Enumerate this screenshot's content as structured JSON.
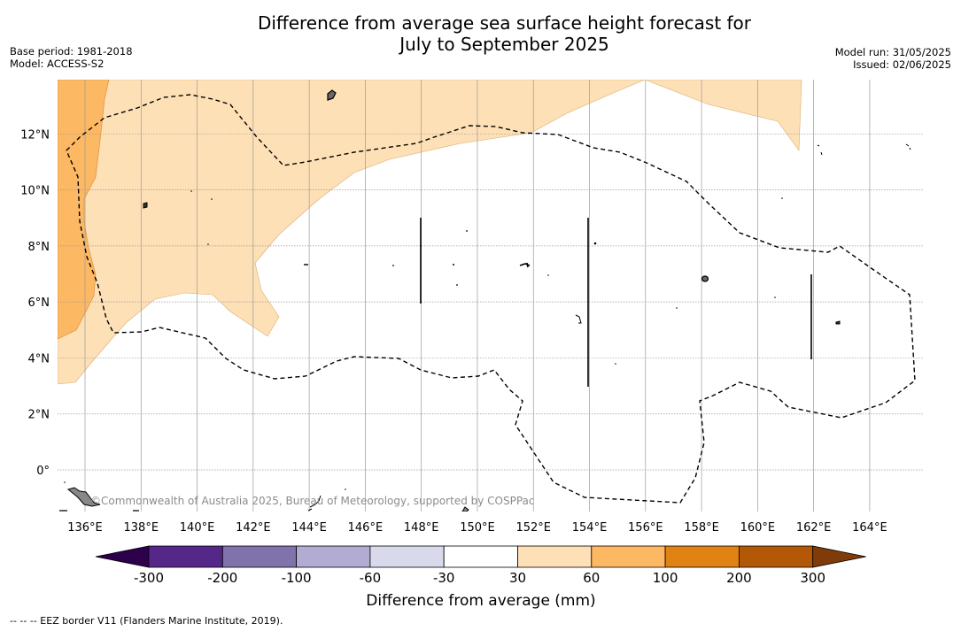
{
  "title": {
    "line1": "Difference from average sea surface height forecast for",
    "line2": "July to September 2025"
  },
  "meta_left": {
    "base_period": "Base period: 1981-2018",
    "model": "Model: ACCESS-S2"
  },
  "meta_right": {
    "model_run": "Model run: 31/05/2025",
    "issued": "Issued: 02/06/2025"
  },
  "map": {
    "lon_labels": [
      "136°E",
      "138°E",
      "140°E",
      "142°E",
      "144°E",
      "146°E",
      "148°E",
      "150°E",
      "152°E",
      "154°E",
      "156°E",
      "158°E",
      "160°E",
      "162°E",
      "164°E"
    ],
    "lat_labels": [
      "12°N",
      "10°N",
      "8°N",
      "6°N",
      "4°N",
      "2°N",
      "0°"
    ],
    "credit": "©Commonwealth of Australia 2025, Bureau of Meteorology, supported by COSPPac",
    "extent": {
      "lon_min": 135.0,
      "lon_max": 166.0,
      "lat_min": -1.5,
      "lat_max": 14.0
    }
  },
  "colorbar": {
    "title": "Difference from average (mm)",
    "tick_labels": [
      "-300",
      "-200",
      "-100",
      "-60",
      "-30",
      "30",
      "60",
      "100",
      "200",
      "300"
    ],
    "colors": {
      "under": "#2d004b",
      "bins": [
        "#542788",
        "#8073ac",
        "#b2abd2",
        "#d8daeb",
        "#ffffff",
        "#fee0b6",
        "#fdb863",
        "#e08214",
        "#b35806"
      ],
      "over": "#7f3b08"
    }
  },
  "legend_note": "--  --  -- EEZ border V11 (Flanders Marine Institute, 2019)."
}
